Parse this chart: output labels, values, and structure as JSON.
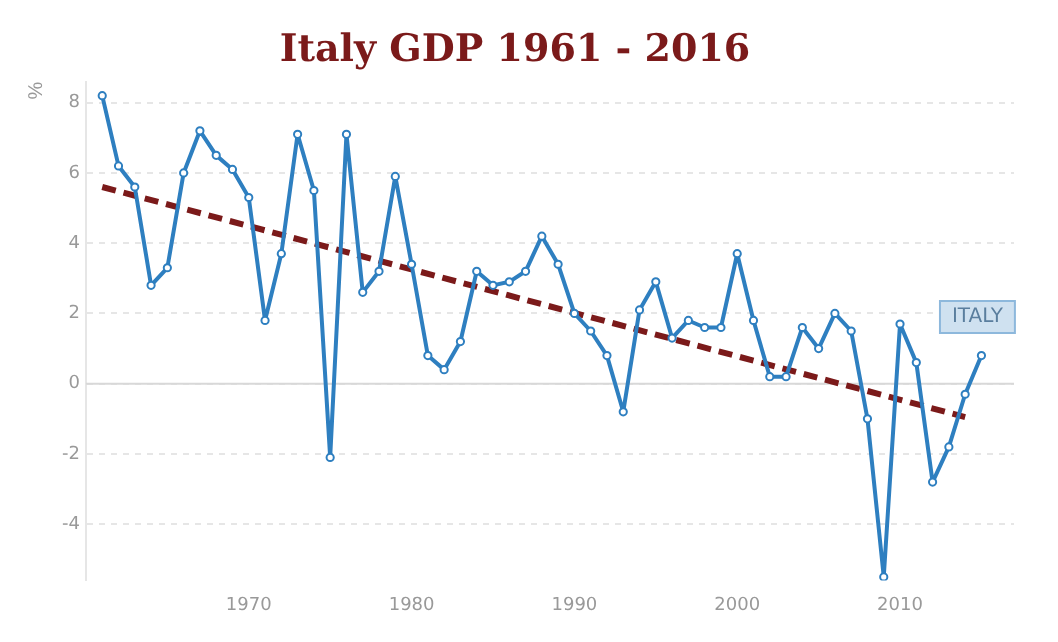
{
  "chart_data": {
    "type": "line",
    "title": "Italy GDP 1961 - 2016",
    "ylabel": "%",
    "x": [
      1961,
      1962,
      1963,
      1964,
      1965,
      1966,
      1967,
      1968,
      1969,
      1970,
      1971,
      1972,
      1973,
      1974,
      1975,
      1976,
      1977,
      1978,
      1979,
      1980,
      1981,
      1982,
      1983,
      1984,
      1985,
      1986,
      1987,
      1988,
      1989,
      1990,
      1991,
      1992,
      1993,
      1994,
      1995,
      1996,
      1997,
      1998,
      1999,
      2000,
      2001,
      2002,
      2003,
      2004,
      2005,
      2006,
      2007,
      2008,
      2009,
      2010,
      2011,
      2012,
      2013,
      2014,
      2015
    ],
    "series": [
      {
        "name": "ITALY",
        "color": "#2e7fc0",
        "marker": "circle",
        "line_style": "solid",
        "values": [
          8.2,
          6.2,
          5.6,
          2.8,
          3.3,
          6.0,
          7.2,
          6.5,
          6.1,
          5.3,
          1.8,
          3.7,
          7.1,
          5.5,
          -2.1,
          7.1,
          2.6,
          3.2,
          5.9,
          3.4,
          0.8,
          0.4,
          1.2,
          3.2,
          2.8,
          2.9,
          3.2,
          4.2,
          3.4,
          2.0,
          1.5,
          0.8,
          -0.8,
          2.1,
          2.9,
          1.3,
          1.8,
          1.6,
          1.6,
          3.7,
          1.8,
          0.2,
          0.2,
          1.6,
          1.0,
          2.0,
          1.5,
          -1.0,
          -5.5,
          1.7,
          0.6,
          -2.8,
          -1.8,
          -0.3,
          0.8
        ]
      },
      {
        "type": "line",
        "color": "#7b1a1a",
        "marker": "none",
        "line_style": "dashed",
        "x": [
          1961,
          2014
        ],
        "values": [
          5.6,
          -0.95
        ]
      }
    ],
    "xlim": [
      1960,
      2017
    ],
    "xticks": [
      1970,
      1980,
      1990,
      2000,
      2010
    ],
    "ylim": [
      -5.6,
      8.6
    ],
    "yticks": [
      -4,
      -2,
      0,
      2,
      4,
      6,
      8
    ],
    "ref_lines": [
      {
        "axis": "y",
        "value": 0,
        "color": "#d8d8d8"
      }
    ],
    "grid": "y",
    "legend": false
  }
}
